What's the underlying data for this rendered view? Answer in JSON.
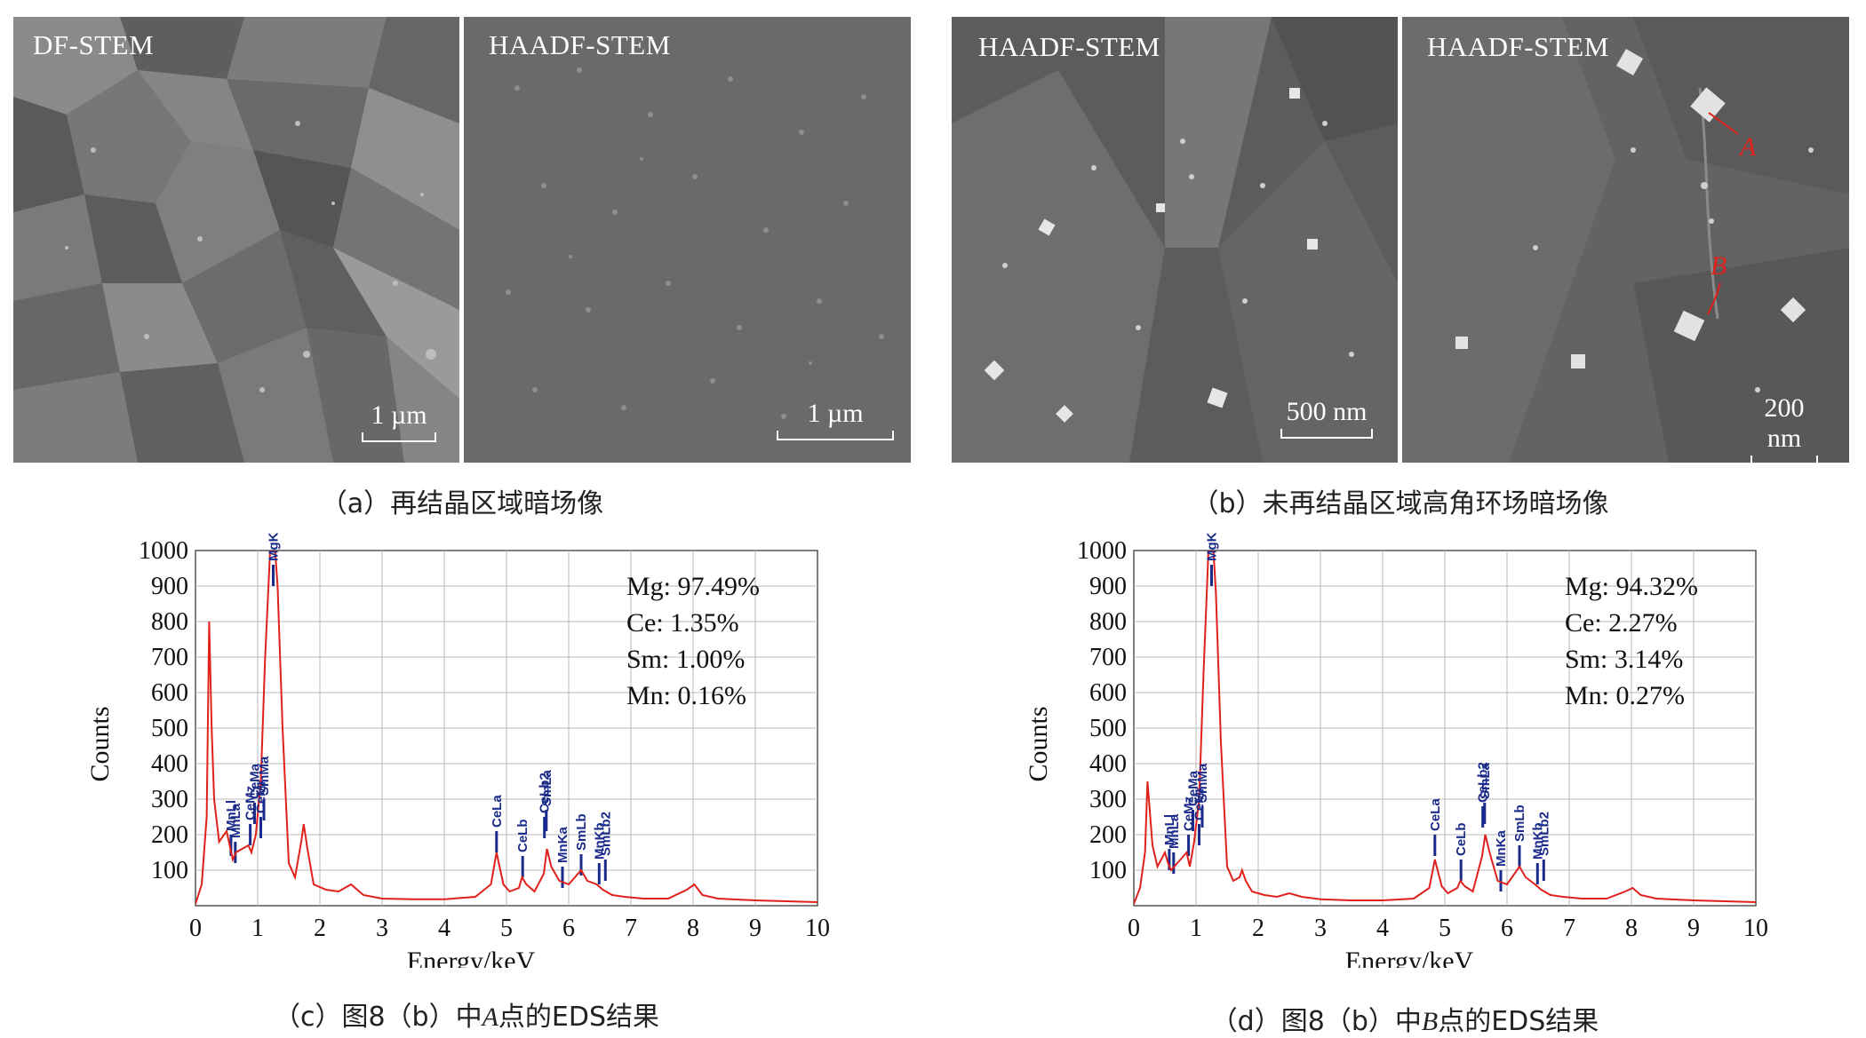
{
  "panels": {
    "a": {
      "caption": "（a）再结晶区域暗场像",
      "images": [
        {
          "tag": "DF-STEM",
          "scale": "1 µm"
        },
        {
          "tag": "HAADF-STEM",
          "scale": "1 µm"
        }
      ]
    },
    "b": {
      "caption": "（b）未再结晶区域高角环场暗场像",
      "images": [
        {
          "tag": "HAADF-STEM",
          "scale": "500 nm"
        },
        {
          "tag": "HAADF-STEM",
          "scale": "200 nm",
          "markers": [
            "A",
            "B"
          ]
        }
      ]
    },
    "c": {
      "caption_pre": "（c）图8（b）中",
      "caption_point": "A",
      "caption_post": "点的EDS结果"
    },
    "d": {
      "caption_pre": "（d）图8（b）中",
      "caption_point": "B",
      "caption_post": "点的EDS结果"
    }
  },
  "chart_data": [
    {
      "type": "line",
      "xlabel": "Energy/keV",
      "ylabel": "Counts",
      "xlim": [
        0,
        10
      ],
      "ylim": [
        0,
        1000
      ],
      "xticks": [
        0,
        1,
        2,
        3,
        4,
        5,
        6,
        7,
        8,
        9,
        10
      ],
      "yticks": [
        100,
        200,
        300,
        400,
        500,
        600,
        700,
        800,
        900,
        1000
      ],
      "grid": true,
      "line_color": "#e0201a",
      "composition": [
        "Mg: 97.49%",
        "Ce: 1.35%",
        "Sm: 1.00%",
        "Mn: 0.16%"
      ],
      "x": [
        0.0,
        0.1,
        0.18,
        0.22,
        0.26,
        0.3,
        0.38,
        0.5,
        0.55,
        0.6,
        0.65,
        0.75,
        0.85,
        0.9,
        0.97,
        1.05,
        1.12,
        1.2,
        1.25,
        1.28,
        1.32,
        1.4,
        1.5,
        1.6,
        1.7,
        1.74,
        1.8,
        1.9,
        2.1,
        2.3,
        2.5,
        2.7,
        3.0,
        3.5,
        4.0,
        4.5,
        4.75,
        4.84,
        4.95,
        5.05,
        5.2,
        5.25,
        5.32,
        5.45,
        5.6,
        5.65,
        5.72,
        5.85,
        6.0,
        6.2,
        6.3,
        6.45,
        6.55,
        6.7,
        6.9,
        7.2,
        7.6,
        7.9,
        8.02,
        8.15,
        8.4,
        9.0,
        10.0
      ],
      "y": [
        5,
        60,
        250,
        800,
        500,
        300,
        180,
        210,
        170,
        130,
        150,
        160,
        170,
        150,
        200,
        350,
        700,
        1000,
        1000,
        1000,
        900,
        500,
        120,
        80,
        180,
        230,
        160,
        60,
        45,
        40,
        60,
        30,
        20,
        18,
        18,
        25,
        60,
        150,
        60,
        40,
        50,
        80,
        60,
        40,
        90,
        160,
        110,
        70,
        60,
        100,
        70,
        60,
        45,
        30,
        25,
        20,
        20,
        45,
        60,
        30,
        20,
        15,
        10
      ],
      "peak_labels": [
        {
          "label": "MnLl",
          "x": 0.57,
          "y": 220
        },
        {
          "label": "MnLa",
          "x": 0.64,
          "y": 200
        },
        {
          "label": "CeMz",
          "x": 0.88,
          "y": 250
        },
        {
          "label": "CeMa",
          "x": 0.95,
          "y": 310
        },
        {
          "label": "CeMr",
          "x": 1.05,
          "y": 270
        },
        {
          "label": "SmMa",
          "x": 1.1,
          "y": 320
        },
        {
          "label": "MgKa",
          "x": 1.25,
          "y": 980
        },
        {
          "label": "CeLa",
          "x": 4.84,
          "y": 230
        },
        {
          "label": "CeLb",
          "x": 5.26,
          "y": 160
        },
        {
          "label": "CeLb2",
          "x": 5.61,
          "y": 270
        },
        {
          "label": "SmLa",
          "x": 5.64,
          "y": 290
        },
        {
          "label": "MnKa",
          "x": 5.9,
          "y": 130
        },
        {
          "label": "SmLb",
          "x": 6.2,
          "y": 165
        },
        {
          "label": "MnKb",
          "x": 6.49,
          "y": 140
        },
        {
          "label": "SmLb2",
          "x": 6.59,
          "y": 150
        }
      ]
    },
    {
      "type": "line",
      "xlabel": "Energy/keV",
      "ylabel": "Counts",
      "xlim": [
        0,
        10
      ],
      "ylim": [
        0,
        1000
      ],
      "xticks": [
        0,
        1,
        2,
        3,
        4,
        5,
        6,
        7,
        8,
        9,
        10
      ],
      "yticks": [
        100,
        200,
        300,
        400,
        500,
        600,
        700,
        800,
        900,
        1000
      ],
      "grid": true,
      "line_color": "#e0201a",
      "composition": [
        "Mg: 94.32%",
        "Ce: 2.27%",
        "Sm: 3.14%",
        "Mn: 0.27%"
      ],
      "x": [
        0.0,
        0.1,
        0.18,
        0.22,
        0.26,
        0.3,
        0.38,
        0.5,
        0.55,
        0.6,
        0.65,
        0.75,
        0.85,
        0.9,
        0.97,
        1.05,
        1.12,
        1.2,
        1.25,
        1.28,
        1.32,
        1.4,
        1.5,
        1.6,
        1.7,
        1.74,
        1.8,
        1.9,
        2.1,
        2.3,
        2.5,
        2.7,
        3.0,
        3.5,
        4.0,
        4.5,
        4.75,
        4.84,
        4.95,
        5.05,
        5.2,
        5.25,
        5.32,
        5.45,
        5.6,
        5.65,
        5.72,
        5.85,
        6.0,
        6.2,
        6.3,
        6.45,
        6.55,
        6.7,
        6.9,
        7.2,
        7.6,
        7.9,
        8.02,
        8.15,
        8.4,
        9.0,
        10.0
      ],
      "y": [
        5,
        50,
        150,
        350,
        260,
        170,
        110,
        150,
        120,
        100,
        110,
        130,
        150,
        110,
        180,
        300,
        650,
        1000,
        1000,
        1000,
        880,
        460,
        110,
        70,
        80,
        100,
        70,
        40,
        30,
        25,
        35,
        25,
        18,
        15,
        15,
        20,
        50,
        130,
        55,
        35,
        50,
        70,
        55,
        40,
        140,
        200,
        150,
        70,
        60,
        110,
        80,
        60,
        45,
        30,
        25,
        20,
        20,
        40,
        50,
        30,
        20,
        15,
        10
      ],
      "peak_labels": [
        {
          "label": "MnLl",
          "x": 0.57,
          "y": 180
        },
        {
          "label": "MnLa",
          "x": 0.64,
          "y": 170
        },
        {
          "label": "CeMz",
          "x": 0.88,
          "y": 220
        },
        {
          "label": "CeMa",
          "x": 0.95,
          "y": 290
        },
        {
          "label": "CeMr",
          "x": 1.05,
          "y": 250
        },
        {
          "label": "SmMa",
          "x": 1.1,
          "y": 300
        },
        {
          "label": "MgKa",
          "x": 1.25,
          "y": 980
        },
        {
          "label": "CeLa",
          "x": 4.84,
          "y": 220
        },
        {
          "label": "CeLb",
          "x": 5.26,
          "y": 150
        },
        {
          "label": "CeLb2",
          "x": 5.61,
          "y": 300
        },
        {
          "label": "SmLa",
          "x": 5.64,
          "y": 310
        },
        {
          "label": "MnKa",
          "x": 5.9,
          "y": 120
        },
        {
          "label": "SmLb",
          "x": 6.2,
          "y": 190
        },
        {
          "label": "MnKb",
          "x": 6.49,
          "y": 140
        },
        {
          "label": "SmLb2",
          "x": 6.59,
          "y": 150
        }
      ]
    }
  ]
}
